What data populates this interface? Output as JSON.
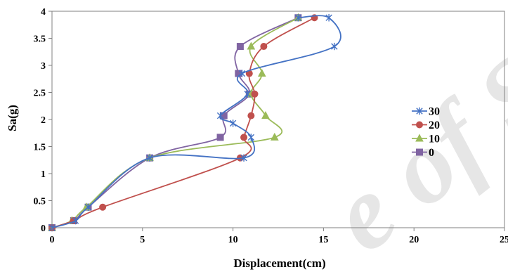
{
  "watermark": "e of SL",
  "chart_data": {
    "type": "line",
    "xlabel": "Displacement(cm)",
    "ylabel": "Sa(g)",
    "xlim": [
      0,
      25
    ],
    "ylim": [
      0,
      4
    ],
    "xticks": [
      "0",
      "5",
      "10",
      "15",
      "20",
      "25"
    ],
    "yticks": [
      "0",
      "0.5",
      "1",
      "1.5",
      "2",
      "2.5",
      "3",
      "3.5",
      "4"
    ],
    "legend_position": "right",
    "grid": false,
    "series": [
      {
        "name": "30",
        "color": "#4472c4",
        "marker": "star",
        "points": [
          [
            0,
            0
          ],
          [
            1.3,
            0.13
          ],
          [
            2.0,
            0.38
          ],
          [
            5.4,
            1.29
          ],
          [
            10.6,
            1.29
          ],
          [
            11.0,
            1.67
          ],
          [
            10.0,
            1.93
          ],
          [
            9.3,
            2.07
          ],
          [
            10.8,
            2.47
          ],
          [
            10.5,
            2.85
          ],
          [
            15.6,
            3.35
          ],
          [
            15.3,
            3.88
          ],
          [
            13.6,
            3.88
          ]
        ]
      },
      {
        "name": "20",
        "color": "#c0504d",
        "marker": "circle",
        "points": [
          [
            0,
            0
          ],
          [
            1.2,
            0.13
          ],
          [
            2.8,
            0.38
          ],
          [
            10.4,
            1.29
          ],
          [
            10.6,
            1.67
          ],
          [
            11.0,
            2.07
          ],
          [
            11.2,
            2.47
          ],
          [
            10.9,
            2.85
          ],
          [
            11.7,
            3.35
          ],
          [
            14.5,
            3.88
          ]
        ]
      },
      {
        "name": "10",
        "color": "#9bbb59",
        "marker": "triangle",
        "points": [
          [
            0,
            0
          ],
          [
            1.1,
            0.13
          ],
          [
            1.9,
            0.38
          ],
          [
            5.4,
            1.29
          ],
          [
            12.3,
            1.67
          ],
          [
            11.8,
            2.07
          ],
          [
            11.0,
            2.47
          ],
          [
            11.6,
            2.85
          ],
          [
            11.0,
            3.35
          ],
          [
            13.6,
            3.88
          ]
        ]
      },
      {
        "name": "0",
        "color": "#8064a2",
        "marker": "square",
        "points": [
          [
            0,
            0
          ],
          [
            1.2,
            0.13
          ],
          [
            2.0,
            0.38
          ],
          [
            5.4,
            1.29
          ],
          [
            9.3,
            1.67
          ],
          [
            9.5,
            2.07
          ],
          [
            10.9,
            2.47
          ],
          [
            10.3,
            2.85
          ],
          [
            10.4,
            3.35
          ],
          [
            13.6,
            3.88
          ]
        ]
      }
    ]
  }
}
